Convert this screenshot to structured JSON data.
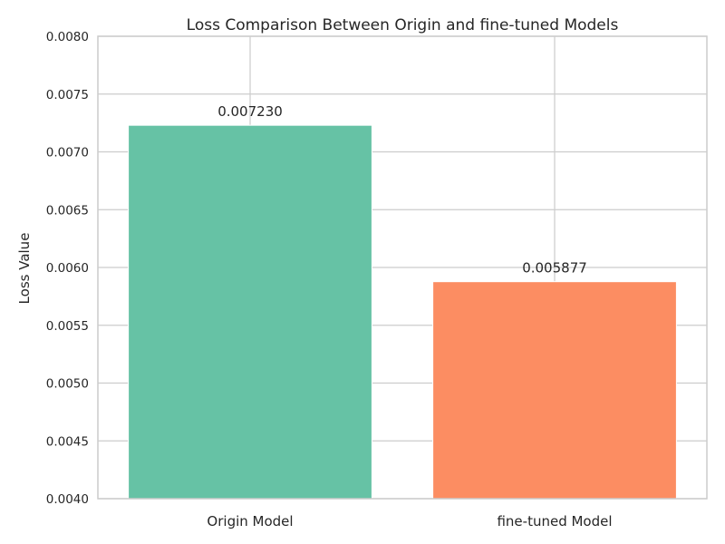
{
  "chart_data": {
    "type": "bar",
    "title": "Loss Comparison Between Origin and fine-tuned Models",
    "xlabel": "",
    "ylabel": "Loss Value",
    "categories": [
      "Origin Model",
      "fine-tuned Model"
    ],
    "values": [
      0.00723,
      0.005877
    ],
    "value_labels": [
      "0.007230",
      "0.005877"
    ],
    "colors": [
      "#66c2a5",
      "#fc8d62"
    ],
    "ylim": [
      0.004,
      0.008
    ],
    "yticks": [
      0.004,
      0.0045,
      0.005,
      0.0055,
      0.006,
      0.0065,
      0.007,
      0.0075,
      0.008
    ],
    "ytick_labels": [
      "0.0040",
      "0.0045",
      "0.0050",
      "0.0055",
      "0.0060",
      "0.0065",
      "0.0070",
      "0.0075",
      "0.0080"
    ],
    "grid": true,
    "legend": "none"
  }
}
